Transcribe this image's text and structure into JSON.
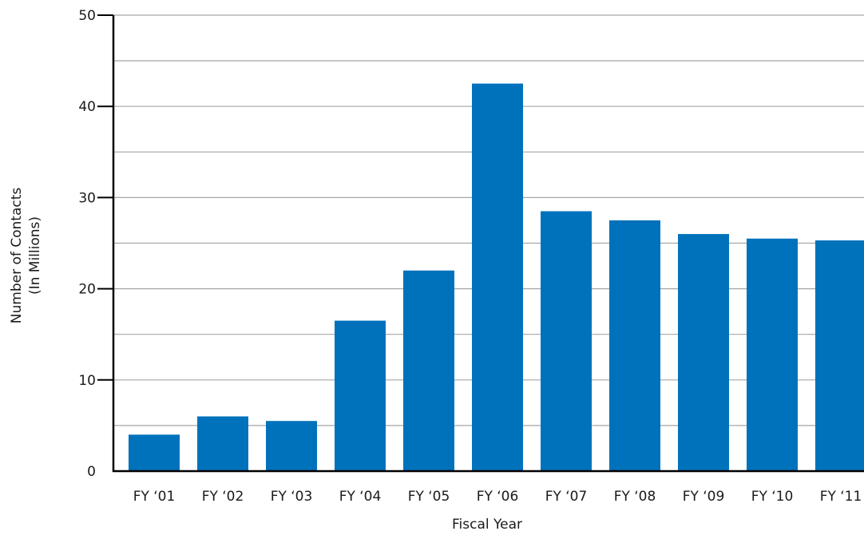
{
  "chart_data": {
    "type": "bar",
    "title": "",
    "xlabel": "Fiscal Year",
    "ylabel": "Number of Contacts",
    "ylabel_sub": "(In Millions)",
    "categories": [
      "FY ‘01",
      "FY ‘02",
      "FY ‘03",
      "FY ‘04",
      "FY ‘05",
      "FY ‘06",
      "FY ‘07",
      "FY ‘08",
      "FY ‘09",
      "FY ‘10",
      "FY ‘11"
    ],
    "values": [
      4.0,
      6.0,
      5.5,
      16.5,
      22.0,
      42.5,
      28.5,
      27.5,
      26.0,
      25.5,
      25.3
    ],
    "ylim": [
      0,
      50
    ],
    "yticks": [
      0,
      10,
      20,
      30,
      40,
      50
    ],
    "ytick_labels": [
      "0",
      "10",
      "20",
      "30",
      "40",
      "50"
    ],
    "grid": true,
    "legend": "none",
    "colors": {
      "bar": "#0072bc",
      "grid": "#a6a6a6",
      "axis": "#000000"
    }
  }
}
